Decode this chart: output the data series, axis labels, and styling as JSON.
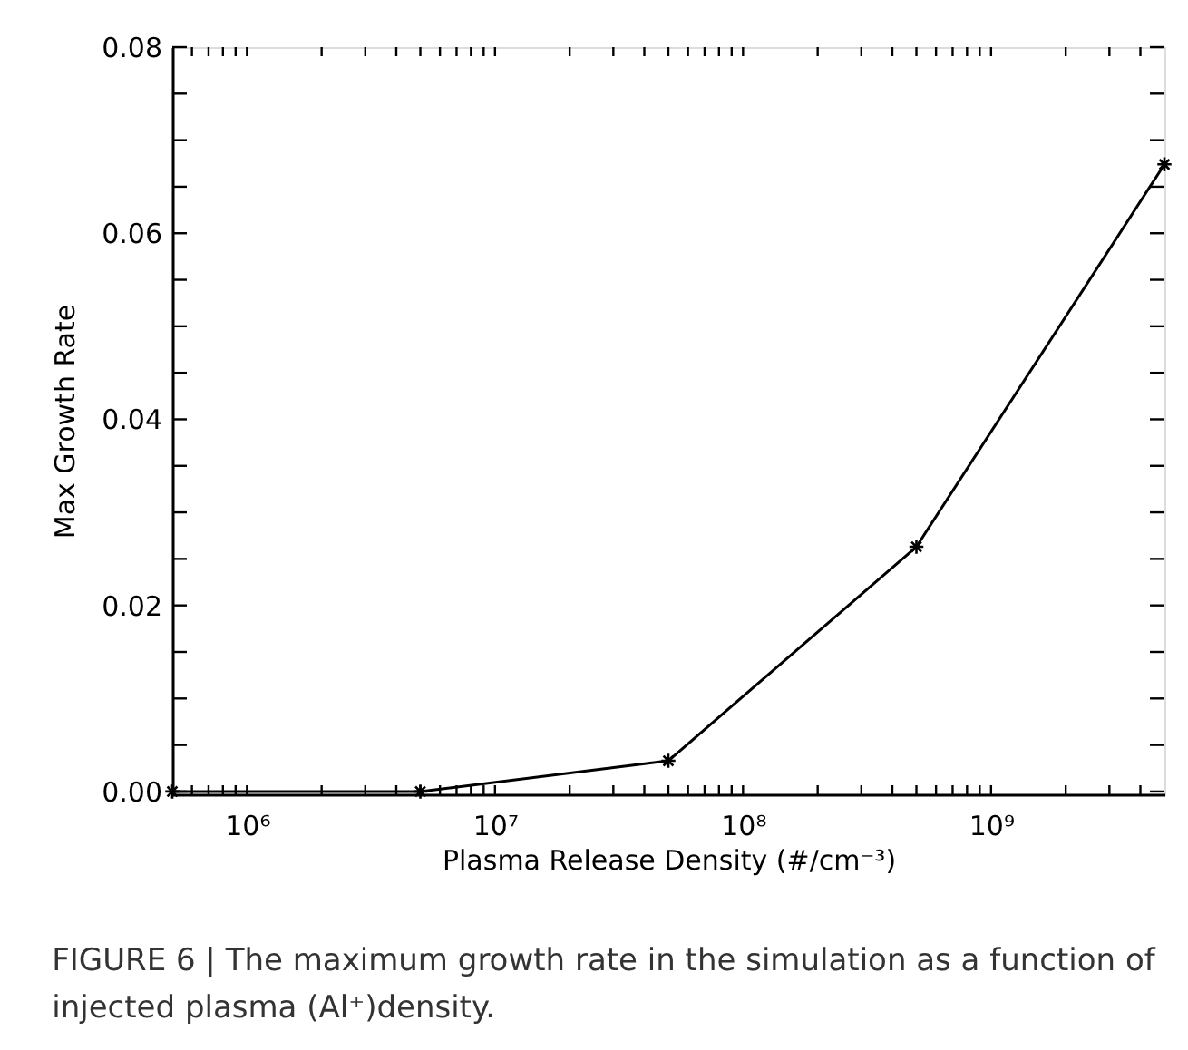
{
  "chart_data": {
    "type": "line",
    "xlabel": "Plasma Release Density (#/cm⁻³)",
    "ylabel": "Max Growth Rate",
    "annotations": [
      "FIGURE 6 | The maximum growth rate in the simulation as a function of",
      "injected plasma (Al⁺)density."
    ],
    "x": [
      500000,
      5000000,
      50000000,
      500000000,
      5000000000
    ],
    "series": [
      {
        "color": "#000000",
        "values": [
          0,
          0,
          0.0033,
          0.0263,
          0.0674
        ]
      }
    ],
    "log": "x",
    "xlim": [
      500000,
      5000000000
    ],
    "xticks": [
      {
        "value": 600000,
        "label": null
      },
      {
        "value": 700000,
        "label": null
      },
      {
        "value": 800000,
        "label": null
      },
      {
        "value": 900000,
        "label": null
      },
      {
        "value": 1000000,
        "label": "10⁶"
      },
      {
        "value": 2000000,
        "label": null
      },
      {
        "value": 3000000,
        "label": null
      },
      {
        "value": 4000000,
        "label": null
      },
      {
        "value": 5000000,
        "label": null
      },
      {
        "value": 6000000,
        "label": null
      },
      {
        "value": 7000000,
        "label": null
      },
      {
        "value": 8000000,
        "label": null
      },
      {
        "value": 9000000,
        "label": null
      },
      {
        "value": 10000000,
        "label": "10⁷"
      },
      {
        "value": 20000000,
        "label": null
      },
      {
        "value": 30000000,
        "label": null
      },
      {
        "value": 40000000,
        "label": null
      },
      {
        "value": 50000000,
        "label": null
      },
      {
        "value": 60000000,
        "label": null
      },
      {
        "value": 70000000,
        "label": null
      },
      {
        "value": 80000000,
        "label": null
      },
      {
        "value": 90000000,
        "label": null
      },
      {
        "value": 100000000,
        "label": "10⁸"
      },
      {
        "value": 200000000,
        "label": null
      },
      {
        "value": 300000000,
        "label": null
      },
      {
        "value": 400000000,
        "label": null
      },
      {
        "value": 500000000,
        "label": null
      },
      {
        "value": 600000000,
        "label": null
      },
      {
        "value": 700000000,
        "label": null
      },
      {
        "value": 800000000,
        "label": null
      },
      {
        "value": 900000000,
        "label": null
      },
      {
        "value": 1000000000,
        "label": "10⁹"
      },
      {
        "value": 2000000000,
        "label": null
      },
      {
        "value": 3000000000,
        "label": null
      },
      {
        "value": 4000000000,
        "label": null
      }
    ],
    "ylim": [
      -0.0003,
      0.08
    ],
    "yticks": [
      "0.00",
      {
        "value": 0.005,
        "label": null
      },
      {
        "value": 0.01,
        "label": null
      },
      {
        "value": 0.015,
        "label": null
      },
      {
        "value": 0.02,
        "label": "0.02"
      },
      {
        "value": 0.025,
        "label": null
      },
      {
        "value": 0.03,
        "label": null
      },
      {
        "value": 0.035,
        "label": null
      },
      {
        "value": 0.04,
        "label": "0.04"
      },
      {
        "value": 0.045,
        "label": null
      },
      {
        "value": 0.05,
        "label": null
      },
      {
        "value": 0.055,
        "label": null
      },
      {
        "value": 0.06,
        "label": "0.06"
      },
      {
        "value": 0.065,
        "label": null
      },
      {
        "value": 0.07,
        "label": null
      },
      {
        "value": 0.075,
        "label": null
      },
      {
        "value": 0.08,
        "label": "0.08"
      }
    ],
    "grid": false,
    "marker": "cross",
    "line_style": "solid"
  }
}
